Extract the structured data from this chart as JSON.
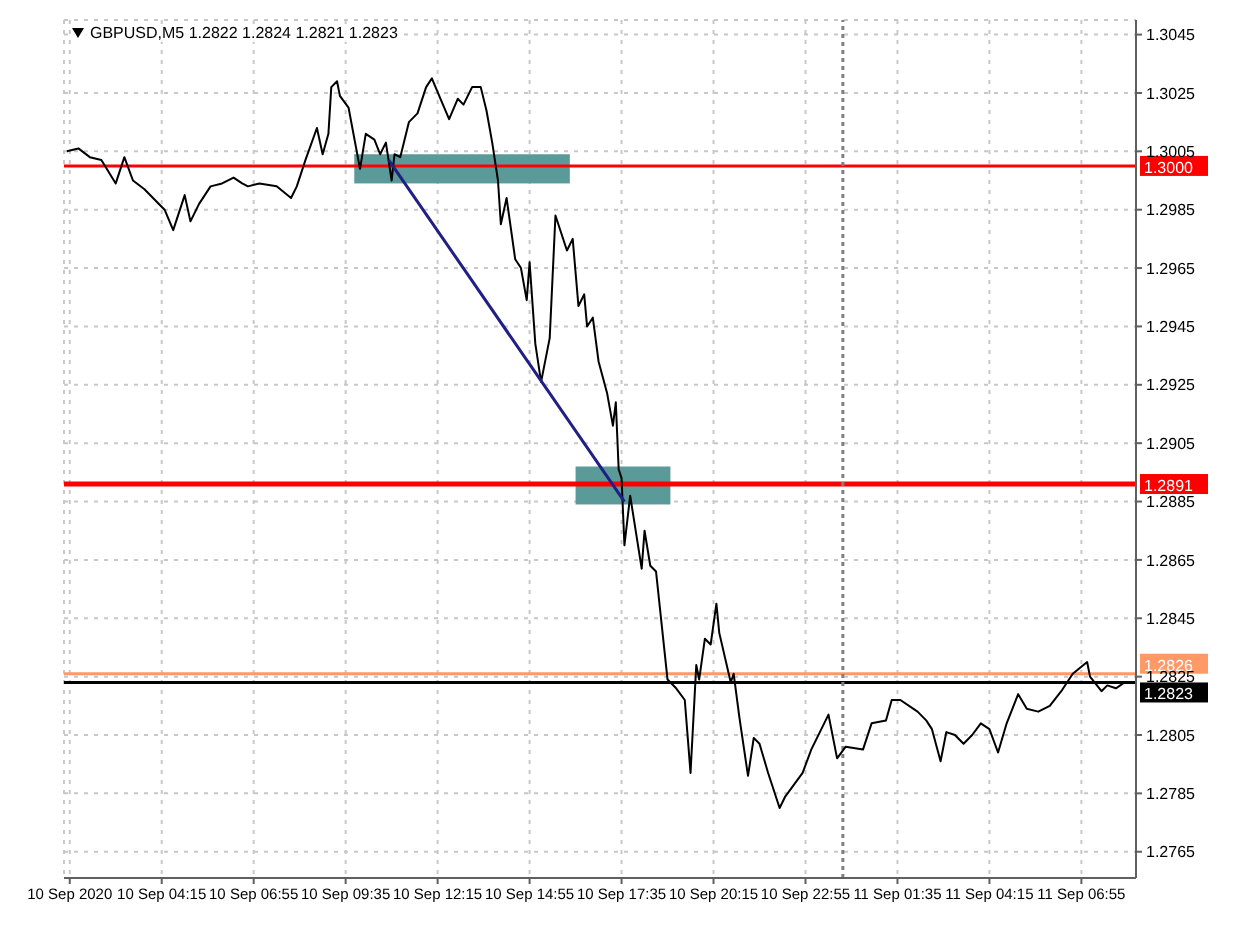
{
  "chart_data": {
    "type": "line",
    "title": "GBPUSD,M5 1.2822 1.2824 1.2821 1.2823",
    "x": [
      "2020-09-10T01:30",
      "2020-09-10T01:50",
      "2020-09-10T02:10",
      "2020-09-10T02:30",
      "2020-09-10T02:55",
      "2020-09-10T03:10",
      "2020-09-10T03:25",
      "2020-09-10T03:45",
      "2020-09-10T04:05",
      "2020-09-10T04:20",
      "2020-09-10T04:35",
      "2020-09-10T04:55",
      "2020-09-10T05:05",
      "2020-09-10T05:20",
      "2020-09-10T05:40",
      "2020-09-10T06:00",
      "2020-09-10T06:20",
      "2020-09-10T06:35",
      "2020-09-10T06:45",
      "2020-09-10T07:05",
      "2020-09-10T07:35",
      "2020-09-10T08:00",
      "2020-09-10T08:10",
      "2020-09-10T08:25",
      "2020-09-10T08:45",
      "2020-09-10T08:55",
      "2020-09-10T09:05",
      "2020-09-10T09:10",
      "2020-09-10T09:20",
      "2020-09-10T09:25",
      "2020-09-10T09:40",
      "2020-09-10T10:00",
      "2020-09-10T10:10",
      "2020-09-10T10:25",
      "2020-09-10T10:35",
      "2020-09-10T10:45",
      "2020-09-10T10:55",
      "2020-09-10T11:00",
      "2020-09-10T11:10",
      "2020-09-10T11:25",
      "2020-09-10T11:40",
      "2020-09-10T11:55",
      "2020-09-10T12:05",
      "2020-09-10T12:20",
      "2020-09-10T12:35",
      "2020-09-10T12:50",
      "2020-09-10T13:00",
      "2020-09-10T13:15",
      "2020-09-10T13:30",
      "2020-09-10T13:40",
      "2020-09-10T13:50",
      "2020-09-10T14:00",
      "2020-09-10T14:05",
      "2020-09-10T14:15",
      "2020-09-10T14:30",
      "2020-09-10T14:40",
      "2020-09-10T14:50",
      "2020-09-10T14:55",
      "2020-09-10T15:05",
      "2020-09-10T15:15",
      "2020-09-10T15:30",
      "2020-09-10T15:40",
      "2020-09-10T15:50",
      "2020-09-10T16:00",
      "2020-09-10T16:10",
      "2020-09-10T16:20",
      "2020-09-10T16:30",
      "2020-09-10T16:35",
      "2020-09-10T16:45",
      "2020-09-10T16:55",
      "2020-09-10T17:10",
      "2020-09-10T17:20",
      "2020-09-10T17:25",
      "2020-09-10T17:30",
      "2020-09-10T17:35",
      "2020-09-10T17:40",
      "2020-09-10T17:50",
      "2020-09-10T18:10",
      "2020-09-10T18:15",
      "2020-09-10T18:25",
      "2020-09-10T18:35",
      "2020-09-10T18:55",
      "2020-09-10T19:10",
      "2020-09-10T19:25",
      "2020-09-10T19:35",
      "2020-09-10T19:45",
      "2020-09-10T19:50",
      "2020-09-10T20:00",
      "2020-09-10T20:10",
      "2020-09-10T20:20",
      "2020-09-10T20:25",
      "2020-09-10T20:45",
      "2020-09-10T20:50",
      "2020-09-10T21:00",
      "2020-09-10T21:15",
      "2020-09-10T21:25",
      "2020-09-10T21:35",
      "2020-09-10T21:50",
      "2020-09-10T21:55",
      "2020-09-10T22:10",
      "2020-09-10T22:20",
      "2020-09-10T22:35",
      "2020-09-10T22:50",
      "2020-09-10T23:05",
      "2020-09-10T23:35",
      "2020-09-10T23:50",
      "2020-09-11T00:05",
      "2020-09-11T00:35",
      "2020-09-11T00:50",
      "2020-09-11T01:15",
      "2020-09-11T01:25",
      "2020-09-11T01:40",
      "2020-09-11T02:10",
      "2020-09-11T02:25",
      "2020-09-11T02:35",
      "2020-09-11T02:50",
      "2020-09-11T03:00",
      "2020-09-11T03:15",
      "2020-09-11T03:30",
      "2020-09-11T03:45",
      "2020-09-11T04:00",
      "2020-09-11T04:15",
      "2020-09-11T04:30",
      "2020-09-11T04:45",
      "2020-09-11T05:05",
      "2020-09-11T05:20",
      "2020-09-11T05:40",
      "2020-09-11T06:00",
      "2020-09-11T06:20",
      "2020-09-11T06:40",
      "2020-09-11T07:05",
      "2020-09-11T07:10",
      "2020-09-11T07:30",
      "2020-09-11T07:40",
      "2020-09-11T07:55",
      "2020-09-11T08:10"
    ],
    "series": [
      {
        "color": "#000000",
        "values": [
          1.3005,
          1.3006,
          1.3003,
          1.3002,
          1.2994,
          1.3003,
          1.2995,
          1.2992,
          1.2988,
          1.2985,
          1.2978,
          1.299,
          1.2981,
          1.2987,
          1.2993,
          1.2994,
          1.2996,
          1.2994,
          1.2993,
          1.2994,
          1.2993,
          1.2989,
          1.2993,
          1.3002,
          1.3013,
          1.3004,
          1.3011,
          1.3027,
          1.3029,
          1.3024,
          1.302,
          1.2999,
          1.3011,
          1.3009,
          1.3004,
          1.3008,
          1.2995,
          1.3004,
          1.3003,
          1.3015,
          1.3018,
          1.3027,
          1.303,
          1.3023,
          1.3016,
          1.3023,
          1.3021,
          1.3027,
          1.3027,
          1.3019,
          1.3008,
          1.2995,
          1.298,
          1.2989,
          1.2968,
          1.2965,
          1.2954,
          1.2967,
          1.2939,
          1.2926,
          1.2941,
          1.2983,
          1.2977,
          1.2971,
          1.2975,
          1.2952,
          1.2956,
          1.2945,
          1.2948,
          1.2933,
          1.2922,
          1.2911,
          1.2919,
          1.2896,
          1.2893,
          1.287,
          1.2887,
          1.2862,
          1.2875,
          1.2863,
          1.2861,
          1.2824,
          1.2821,
          1.2817,
          1.2792,
          1.2829,
          1.2824,
          1.2838,
          1.2836,
          1.285,
          1.284,
          1.2823,
          1.2826,
          1.2811,
          1.2791,
          1.2804,
          1.2802,
          1.2792,
          1.2789,
          1.278,
          1.2784,
          1.2788,
          1.2792,
          1.28,
          1.2812,
          1.2797,
          1.2801,
          1.28,
          1.2809,
          1.281,
          1.2817,
          1.2817,
          1.2813,
          1.281,
          1.2807,
          1.2796,
          1.2806,
          1.2805,
          1.2802,
          1.2805,
          1.2809,
          1.2807,
          1.2799,
          1.2809,
          1.2819,
          1.2814,
          1.2813,
          1.2815,
          1.282,
          1.2826,
          1.283,
          1.2825,
          1.282,
          1.2822,
          1.2821,
          1.2823
        ]
      },
      {
        "color": "#1f1f85",
        "x": [
          "2020-09-10T10:50",
          "2020-09-10T17:40"
        ],
        "values": [
          1.3002,
          1.2885
        ]
      }
    ],
    "xlim": [
      "2020-09-10T01:25",
      "2020-09-11T08:30"
    ],
    "xticks": [
      {
        "value": "2020-09-10T01:35",
        "label": "10 Sep 2020"
      },
      {
        "value": "2020-09-10T04:15",
        "label": "10 Sep 04:15"
      },
      {
        "value": "2020-09-10T06:55",
        "label": "10 Sep 06:55"
      },
      {
        "value": "2020-09-10T09:35",
        "label": "10 Sep 09:35"
      },
      {
        "value": "2020-09-10T12:15",
        "label": "10 Sep 12:15"
      },
      {
        "value": "2020-09-10T14:55",
        "label": "10 Sep 14:55"
      },
      {
        "value": "2020-09-10T17:35",
        "label": "10 Sep 17:35"
      },
      {
        "value": "2020-09-10T20:15",
        "label": "10 Sep 20:15"
      },
      {
        "value": "2020-09-10T22:55",
        "label": "10 Sep 22:55"
      },
      {
        "value": "2020-09-11T01:35",
        "label": "11 Sep 01:35"
      },
      {
        "value": "2020-09-11T04:15",
        "label": "11 Sep 04:15"
      },
      {
        "value": "2020-09-11T06:55",
        "label": "11 Sep 06:55"
      }
    ],
    "ylim": [
      1.2756,
      1.305
    ],
    "yticks": [
      1.2765,
      1.2785,
      1.2805,
      1.2825,
      1.2845,
      1.2865,
      1.2885,
      1.2905,
      1.2925,
      1.2945,
      1.2965,
      1.2985,
      1.3005,
      1.3025,
      1.3045
    ],
    "ref_lines": [
      {
        "axis": "y",
        "value": 1.3,
        "label": "1.3000",
        "color": "#ff0000"
      },
      {
        "axis": "y",
        "value": 1.2891,
        "label": "1.2891",
        "color": "#ff0000"
      },
      {
        "axis": "y",
        "value": 1.2826,
        "label": "1.2826",
        "color": "#ff9966"
      },
      {
        "axis": "y",
        "value": 1.2823,
        "label": "1.2823",
        "color": "#000000"
      },
      {
        "axis": "x",
        "value": "2020-09-11T00:00",
        "color": "#808080",
        "line_style": "dotted"
      }
    ],
    "grid": true,
    "legend": false,
    "marker": "none",
    "line_style": "solid"
  }
}
